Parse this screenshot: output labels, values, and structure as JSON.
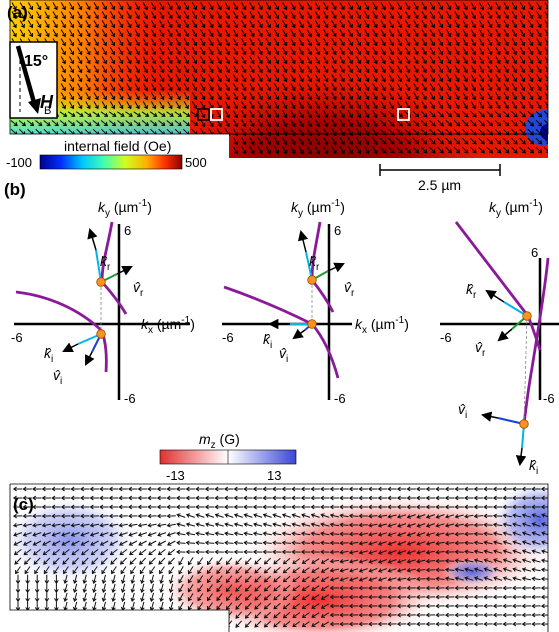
{
  "panel_a": {
    "label": "(a)",
    "field_angle": "15°",
    "field_symbol": "H",
    "field_subscript": "B",
    "colorbar_title": "internal field (Oe)",
    "colorbar_min": "-100",
    "colorbar_max": "500",
    "scalebar_label": "2.5 µm"
  },
  "panel_b": {
    "label": "(b)",
    "ky_axis": "k",
    "ky_sub": "y",
    "ky_unit": " (µm",
    "ky_exp": "-1",
    "ky_close": ")",
    "kx_axis": "k",
    "kx_sub": "x",
    "kx_unit": " (µm",
    "kx_exp": "-1",
    "kx_close": ")",
    "tick_pos": "6",
    "tick_neg": "-6",
    "vec_kr": "k̂",
    "vec_kr_sub": "r",
    "vec_vr": "v̂",
    "vec_vr_sub": "r",
    "vec_ki": "k̂",
    "vec_ki_sub": "i",
    "vec_vi": "v̂",
    "vec_vi_sub": "i",
    "colorbar_title": "m",
    "colorbar_title_sub": "z",
    "colorbar_title_unit": " (G)",
    "colorbar_min": "-13",
    "colorbar_max": "13"
  },
  "panel_c": {
    "label": "(c)"
  },
  "colors": {
    "curve": "#8b1a9a",
    "incident_k": "#00b7e8",
    "reflected_k": "#00b7e8",
    "group_v_reflected": "#1a9b2c",
    "group_v_incident": "#1a3fd6",
    "intersection_dot": "#f7931e"
  }
}
